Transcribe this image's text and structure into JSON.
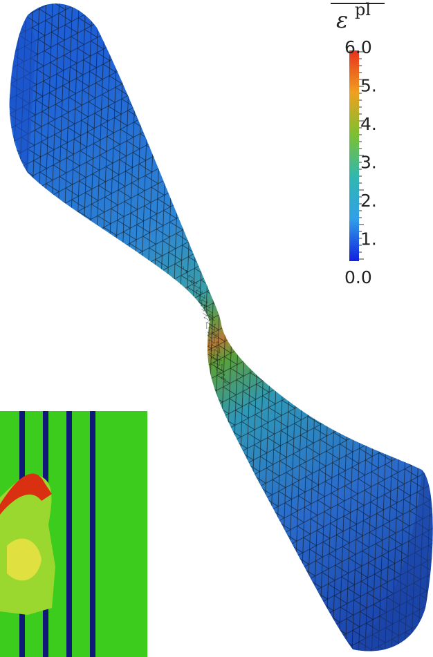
{
  "colorbar": {
    "title_symbol": "ε",
    "title_superscript": "pl",
    "labels": [
      "6.0",
      "5.",
      "4.",
      "3.",
      "2.",
      "1.",
      "0.0"
    ]
  }
}
